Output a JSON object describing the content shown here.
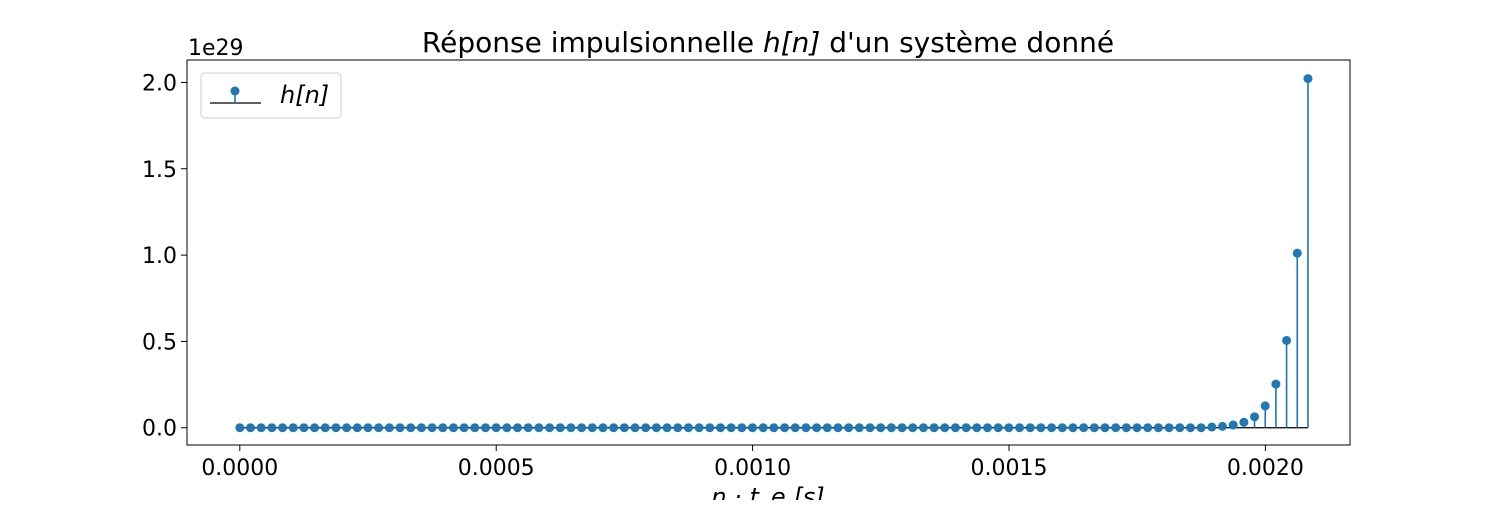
{
  "chart_data": {
    "type": "stem",
    "title_prefix": "Réponse impulsionnelle ",
    "title_math": "h[n]",
    "title_suffix": " d'un système donné",
    "xlabel": "n · t_e [s]",
    "y_offset_text": "1e29",
    "y_scale": 1e+29,
    "legend": {
      "label": "h[n]",
      "placement": "upper-left"
    },
    "grid": false,
    "xlim": [
      -0.000103,
      0.002165
    ],
    "ylim": [
      -0.1,
      2.13
    ],
    "xticks": [
      {
        "value": 0.0,
        "label": "0.0000"
      },
      {
        "value": 0.0005,
        "label": "0.0005"
      },
      {
        "value": 0.001,
        "label": "0.0010"
      },
      {
        "value": 0.0015,
        "label": "0.0015"
      },
      {
        "value": 0.002,
        "label": "0.0020"
      }
    ],
    "yticks": [
      {
        "value": 0.0,
        "label": "0.0"
      },
      {
        "value": 0.5,
        "label": "0.5"
      },
      {
        "value": 1.0,
        "label": "1.0"
      },
      {
        "value": 1.5,
        "label": "1.5"
      },
      {
        "value": 2.0,
        "label": "2.0"
      }
    ],
    "series": [
      {
        "color": "#1f77b4",
        "baseline_color": "#000000",
        "x_start": 0.0,
        "x_step": 2.083e-05,
        "y": [
          0,
          0,
          0,
          0,
          0,
          0,
          0,
          0,
          0,
          0,
          0,
          0,
          0,
          0,
          0,
          0,
          0,
          0,
          0,
          0,
          0,
          0,
          0,
          0,
          0,
          0,
          0,
          0,
          0,
          0,
          0,
          0,
          0,
          0,
          0,
          0,
          0,
          0,
          0,
          0,
          0,
          0,
          0,
          0,
          0,
          0,
          0,
          0,
          0,
          0,
          0,
          0,
          0,
          0,
          0,
          0,
          0,
          0,
          0,
          0,
          0,
          0,
          0,
          0,
          0,
          0,
          0,
          0,
          0,
          0,
          0,
          0,
          0,
          0,
          0,
          0,
          0,
          0,
          0,
          0,
          0,
          0,
          0,
          0,
          0,
          0,
          0,
          0,
          0,
          0,
          0,
          0.0039,
          0.0079,
          0.0158,
          0.0316,
          0.0632,
          0.1264,
          0.2528,
          0.5056,
          1.0112,
          2.0224
        ]
      }
    ]
  }
}
